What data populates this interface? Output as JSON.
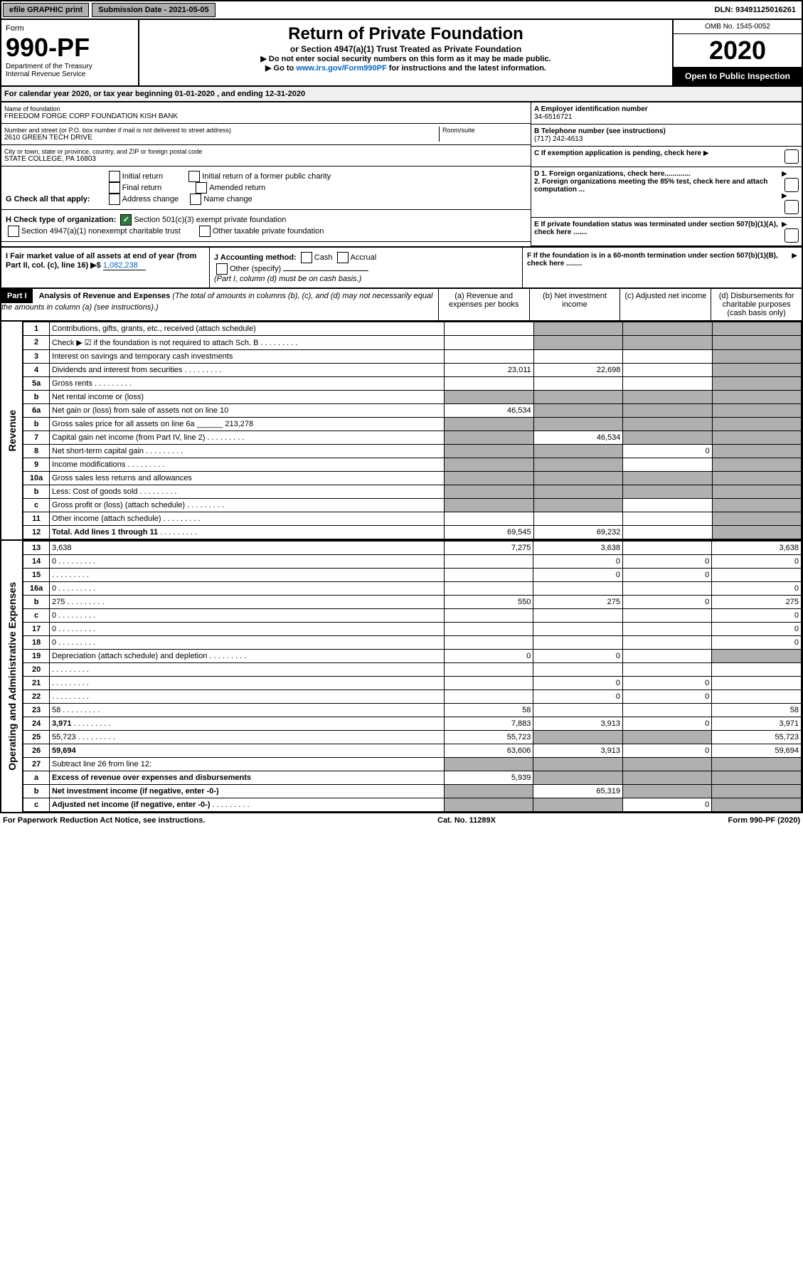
{
  "top": {
    "efile": "efile GRAPHIC print",
    "submission": "Submission Date - 2021-05-05",
    "dln": "DLN: 93491125016261"
  },
  "header": {
    "form_label": "Form",
    "form_num": "990-PF",
    "dept1": "Department of the Treasury",
    "dept2": "Internal Revenue Service",
    "title": "Return of Private Foundation",
    "subtitle": "or Section 4947(a)(1) Trust Treated as Private Foundation",
    "inst1": "▶ Do not enter social security numbers on this form as it may be made public.",
    "inst2_prefix": "▶ Go to ",
    "inst2_link": "www.irs.gov/Form990PF",
    "inst2_suffix": " for instructions and the latest information.",
    "omb": "OMB No. 1545-0052",
    "year": "2020",
    "open": "Open to Public Inspection"
  },
  "cal_year": {
    "prefix": "For calendar year 2020, or tax year beginning ",
    "begin": "01-01-2020",
    "mid": " , and ending ",
    "end": "12-31-2020"
  },
  "info": {
    "name_label": "Name of foundation",
    "name": "FREEDOM FORGE CORP FOUNDATION KISH BANK",
    "addr_label": "Number and street (or P.O. box number if mail is not delivered to street address)",
    "addr": "2610 GREEN TECH DRIVE",
    "room_label": "Room/suite",
    "city_label": "City or town, state or province, country, and ZIP or foreign postal code",
    "city": "STATE COLLEGE, PA  16803",
    "ein_label": "A Employer identification number",
    "ein": "34-6516721",
    "phone_label": "B Telephone number (see instructions)",
    "phone": "(717) 242-4613",
    "c_label": "C If exemption application is pending, check here",
    "d1": "D 1. Foreign organizations, check here.............",
    "d2": "2. Foreign organizations meeting the 85% test, check here and attach computation ...",
    "e_label": "E If private foundation status was terminated under section 507(b)(1)(A), check here .......",
    "f_label": "F If the foundation is in a 60-month termination under section 507(b)(1)(B), check here ........"
  },
  "g": {
    "label": "G Check all that apply:",
    "opts": [
      "Initial return",
      "Final return",
      "Address change",
      "Initial return of a former public charity",
      "Amended return",
      "Name change"
    ]
  },
  "h": {
    "label": "H Check type of organization:",
    "opt1": "Section 501(c)(3) exempt private foundation",
    "opt2": "Section 4947(a)(1) nonexempt charitable trust",
    "opt3": "Other taxable private foundation"
  },
  "i": {
    "label": "I Fair market value of all assets at end of year (from Part II, col. (c), line 16) ▶$ ",
    "value": "1,082,238"
  },
  "j": {
    "label": "J Accounting method:",
    "cash": "Cash",
    "accrual": "Accrual",
    "other": "Other (specify)",
    "note": "(Part I, column (d) must be on cash basis.)"
  },
  "part1": {
    "label": "Part I",
    "title": "Analysis of Revenue and Expenses",
    "note": "(The total of amounts in columns (b), (c), and (d) may not necessarily equal the amounts in column (a) (see instructions).)",
    "col_a": "(a) Revenue and expenses per books",
    "col_b": "(b) Net investment income",
    "col_c": "(c) Adjusted net income",
    "col_d": "(d) Disbursements for charitable purposes (cash basis only)"
  },
  "vert_rev": "Revenue",
  "vert_exp": "Operating and Administrative Expenses",
  "rows_rev": [
    {
      "n": "1",
      "d": "Contributions, gifts, grants, etc., received (attach schedule)",
      "a": "",
      "b_s": true,
      "c_s": true,
      "d_s": true
    },
    {
      "n": "2",
      "d": "Check ▶ ☑ if the foundation is not required to attach Sch. B",
      "a": "",
      "b_s": true,
      "c_s": true,
      "d_s": true,
      "dots": true
    },
    {
      "n": "3",
      "d": "Interest on savings and temporary cash investments",
      "a": "",
      "b": "",
      "c": "",
      "d_s": true
    },
    {
      "n": "4",
      "d": "Dividends and interest from securities",
      "a": "23,011",
      "b": "22,698",
      "c": "",
      "d_s": true,
      "dots": true
    },
    {
      "n": "5a",
      "d": "Gross rents",
      "a": "",
      "b": "",
      "c": "",
      "d_s": true,
      "dots": true
    },
    {
      "n": "b",
      "d": "Net rental income or (loss)",
      "a_s": true,
      "b_s": true,
      "c_s": true,
      "d_s": true
    },
    {
      "n": "6a",
      "d": "Net gain or (loss) from sale of assets not on line 10",
      "a": "46,534",
      "b_s": true,
      "c_s": true,
      "d_s": true
    },
    {
      "n": "b",
      "d": "Gross sales price for all assets on line 6a ______ 213,278",
      "a_s": true,
      "b_s": true,
      "c_s": true,
      "d_s": true
    },
    {
      "n": "7",
      "d": "Capital gain net income (from Part IV, line 2)",
      "a_s": true,
      "b": "46,534",
      "c_s": true,
      "d_s": true,
      "dots": true
    },
    {
      "n": "8",
      "d": "Net short-term capital gain",
      "a_s": true,
      "b_s": true,
      "c": "0",
      "d_s": true,
      "dots": true
    },
    {
      "n": "9",
      "d": "Income modifications",
      "a_s": true,
      "b_s": true,
      "c": "",
      "d_s": true,
      "dots": true
    },
    {
      "n": "10a",
      "d": "Gross sales less returns and allowances",
      "a_s": true,
      "b_s": true,
      "c_s": true,
      "d_s": true
    },
    {
      "n": "b",
      "d": "Less: Cost of goods sold",
      "a_s": true,
      "b_s": true,
      "c_s": true,
      "d_s": true,
      "dots": true
    },
    {
      "n": "c",
      "d": "Gross profit or (loss) (attach schedule)",
      "a_s": true,
      "b_s": true,
      "c": "",
      "d_s": true,
      "dots": true
    },
    {
      "n": "11",
      "d": "Other income (attach schedule)",
      "a": "",
      "b": "",
      "c": "",
      "d_s": true,
      "dots": true
    },
    {
      "n": "12",
      "d": "Total. Add lines 1 through 11",
      "a": "69,545",
      "b": "69,232",
      "c": "",
      "d_s": true,
      "bold": true,
      "dots": true
    }
  ],
  "rows_exp": [
    {
      "n": "13",
      "d": "3,638",
      "a": "7,275",
      "b": "3,638",
      "c": ""
    },
    {
      "n": "14",
      "d": "0",
      "a": "",
      "b": "0",
      "c": "0",
      "dots": true
    },
    {
      "n": "15",
      "d": "",
      "a": "",
      "b": "0",
      "c": "0",
      "dots": true
    },
    {
      "n": "16a",
      "d": "0",
      "a": "",
      "b": "",
      "c": "",
      "dots": true
    },
    {
      "n": "b",
      "d": "275",
      "a": "550",
      "b": "275",
      "c": "0",
      "dots": true
    },
    {
      "n": "c",
      "d": "0",
      "a": "",
      "b": "",
      "c": "",
      "dots": true
    },
    {
      "n": "17",
      "d": "0",
      "a": "",
      "b": "",
      "c": "",
      "dots": true
    },
    {
      "n": "18",
      "d": "0",
      "a": "",
      "b": "",
      "c": "",
      "dots": true
    },
    {
      "n": "19",
      "d": "Depreciation (attach schedule) and depletion",
      "a": "0",
      "b": "0",
      "c": "",
      "d_s": true,
      "dots": true
    },
    {
      "n": "20",
      "d": "",
      "a": "",
      "b": "",
      "c": "",
      "dots": true
    },
    {
      "n": "21",
      "d": "",
      "a": "",
      "b": "0",
      "c": "0",
      "dots": true
    },
    {
      "n": "22",
      "d": "",
      "a": "",
      "b": "0",
      "c": "0",
      "dots": true
    },
    {
      "n": "23",
      "d": "58",
      "a": "58",
      "b": "",
      "c": "",
      "dots": true
    },
    {
      "n": "24",
      "d": "3,971",
      "a": "7,883",
      "b": "3,913",
      "c": "0",
      "bold": true,
      "dots": true
    },
    {
      "n": "25",
      "d": "55,723",
      "a": "55,723",
      "b_s": true,
      "c_s": true,
      "dots": true
    },
    {
      "n": "26",
      "d": "59,694",
      "a": "63,606",
      "b": "3,913",
      "c": "0",
      "bold": true
    },
    {
      "n": "27",
      "d": "Subtract line 26 from line 12:",
      "a_s": true,
      "b_s": true,
      "c_s": true,
      "d_s": true
    },
    {
      "n": "a",
      "d": "Excess of revenue over expenses and disbursements",
      "a": "5,939",
      "b_s": true,
      "c_s": true,
      "d_s": true,
      "bold": true
    },
    {
      "n": "b",
      "d": "Net investment income (if negative, enter -0-)",
      "a_s": true,
      "b": "65,319",
      "c_s": true,
      "d_s": true,
      "bold": true
    },
    {
      "n": "c",
      "d": "Adjusted net income (if negative, enter -0-)",
      "a_s": true,
      "b_s": true,
      "c": "0",
      "d_s": true,
      "bold": true,
      "dots": true
    }
  ],
  "footer": {
    "left": "For Paperwork Reduction Act Notice, see instructions.",
    "mid": "Cat. No. 11289X",
    "right": "Form 990-PF (2020)"
  }
}
